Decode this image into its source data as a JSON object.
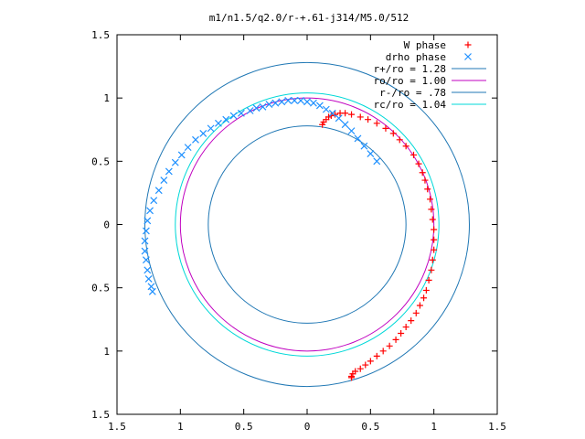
{
  "chart_data": {
    "type": "scatter",
    "title": "m1/n1.5/q2.0/r-+.61-j314/M5.0/512",
    "xlabel": "",
    "ylabel": "",
    "xlim": [
      1.5,
      -1.5
    ],
    "ylim": [
      -1.5,
      1.5
    ],
    "x_tick_values": [
      1.5,
      1,
      0.5,
      0,
      -0.5,
      -1,
      -1.5
    ],
    "x_tick_labels": [
      "1.5",
      "1",
      "0.5",
      "0",
      "0.5",
      "1",
      "1.5"
    ],
    "y_tick_values": [
      1.5,
      1,
      0.5,
      0,
      -0.5,
      -1,
      -1.5
    ],
    "y_tick_labels": [
      "1.5",
      "1",
      "0.5",
      "0",
      "0.5",
      "1",
      "1.5"
    ],
    "grid": false,
    "legend_position": "top-right",
    "series": [
      {
        "name": "W phase",
        "kind": "points",
        "marker": "+",
        "color": "#ff0000",
        "x": [
          -0.12,
          -0.13,
          -0.15,
          -0.17,
          -0.19,
          -0.22,
          -0.26,
          -0.3,
          -0.35,
          -0.42,
          -0.48,
          -0.55,
          -0.62,
          -0.68,
          -0.73,
          -0.78,
          -0.84,
          -0.88,
          -0.91,
          -0.93,
          -0.95,
          -0.97,
          -0.98,
          -0.99,
          -1.0,
          -1.0,
          -1.0,
          -0.99,
          -0.98,
          -0.96,
          -0.94,
          -0.92,
          -0.89,
          -0.86,
          -0.82,
          -0.78,
          -0.74,
          -0.7,
          -0.65,
          -0.6,
          -0.55,
          -0.5,
          -0.46,
          -0.42,
          -0.38,
          -0.36,
          -0.35,
          -0.35
        ],
        "y": [
          0.79,
          0.81,
          0.83,
          0.85,
          0.86,
          0.87,
          0.88,
          0.88,
          0.87,
          0.85,
          0.83,
          0.8,
          0.76,
          0.72,
          0.67,
          0.62,
          0.55,
          0.48,
          0.41,
          0.35,
          0.28,
          0.2,
          0.12,
          0.04,
          -0.04,
          -0.12,
          -0.2,
          -0.28,
          -0.36,
          -0.44,
          -0.52,
          -0.58,
          -0.64,
          -0.7,
          -0.76,
          -0.81,
          -0.86,
          -0.91,
          -0.96,
          -1.0,
          -1.04,
          -1.08,
          -1.11,
          -1.14,
          -1.16,
          -1.18,
          -1.2,
          -1.21
        ]
      },
      {
        "name": "drho phase",
        "kind": "points",
        "marker": "x",
        "color": "#1e90ff",
        "x": [
          -0.55,
          -0.5,
          -0.45,
          -0.4,
          -0.35,
          -0.3,
          -0.25,
          -0.2,
          -0.15,
          -0.1,
          -0.05,
          0.0,
          0.05,
          0.1,
          0.15,
          0.2,
          0.25,
          0.3,
          0.35,
          0.4,
          0.45,
          0.52,
          0.58,
          0.64,
          0.7,
          0.76,
          0.82,
          0.88,
          0.94,
          0.99,
          1.04,
          1.09,
          1.13,
          1.17,
          1.21,
          1.24,
          1.26,
          1.27,
          1.28,
          1.28,
          1.27,
          1.26,
          1.25,
          1.23,
          1.22
        ],
        "y": [
          0.5,
          0.56,
          0.62,
          0.68,
          0.74,
          0.79,
          0.84,
          0.88,
          0.91,
          0.94,
          0.96,
          0.97,
          0.98,
          0.98,
          0.98,
          0.97,
          0.96,
          0.95,
          0.93,
          0.92,
          0.9,
          0.88,
          0.86,
          0.83,
          0.8,
          0.76,
          0.72,
          0.67,
          0.61,
          0.55,
          0.49,
          0.42,
          0.35,
          0.27,
          0.19,
          0.11,
          0.03,
          -0.05,
          -0.13,
          -0.21,
          -0.28,
          -0.36,
          -0.43,
          -0.49,
          -0.53
        ]
      },
      {
        "name": "r+/ro = 1.28",
        "kind": "circle",
        "radius": 1.28,
        "color": "#1f77b4"
      },
      {
        "name": "ro/ro = 1.00",
        "kind": "circle",
        "radius": 1.0,
        "color": "#c000c0"
      },
      {
        "name": "r-/ro =  .78",
        "kind": "circle",
        "radius": 0.78,
        "color": "#1f77b4"
      },
      {
        "name": "rc/ro = 1.04",
        "kind": "circle",
        "radius": 1.04,
        "color": "#00d8d8"
      }
    ]
  }
}
